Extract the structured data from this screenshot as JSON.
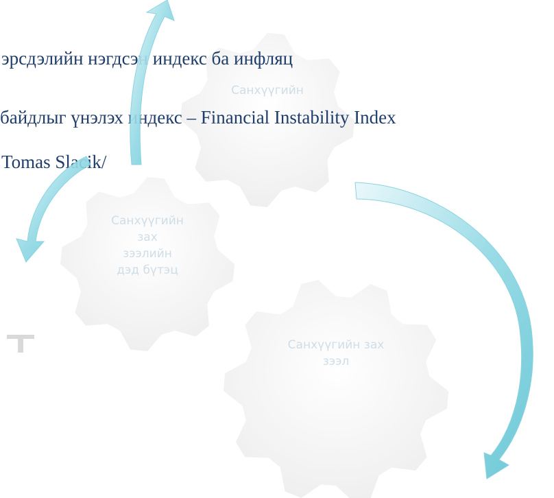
{
  "body": {
    "lines": [
      "эрсдэлийн нэгдсэн индекс ба инфляц",
      "байдлыг үнэлэх индекс – Financial Instability Index",
      "Tomas Slacik/"
    ]
  },
  "diagram": {
    "gears": [
      {
        "label": [
          "Санхүүгийн"
        ]
      },
      {
        "label": [
          "Санхүүгийн",
          "зах",
          "зээлийн",
          "дэд  бүтэц"
        ]
      },
      {
        "label": [
          "Санхүүгийн зах",
          "зээл"
        ]
      }
    ]
  }
}
